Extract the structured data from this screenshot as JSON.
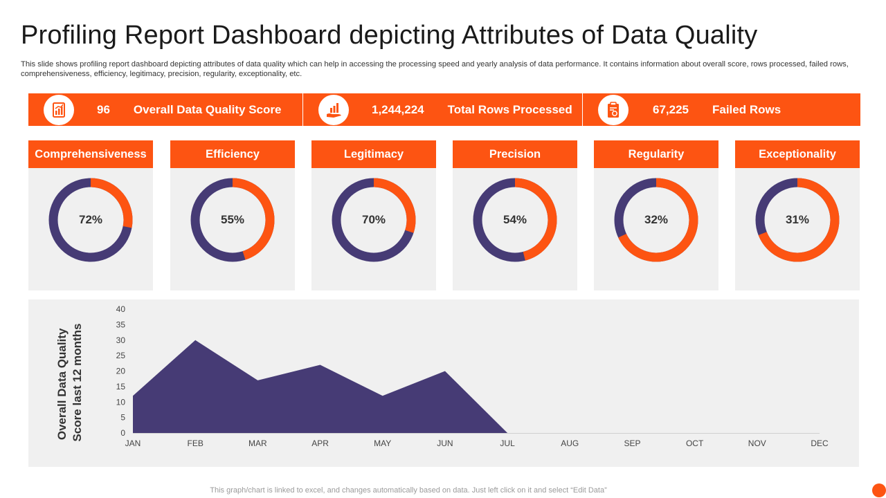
{
  "title": "Profiling Report Dashboard depicting Attributes of Data Quality",
  "subtitle": "This slide shows profiling report dashboard depicting attributes of data quality which can help in accessing the processing speed and yearly analysis of data performance. It contains information about overall score, rows processed, failed rows, comprehensiveness, efficiency, legitimacy, precision, regularity, exceptionality, etc.",
  "kpis": [
    {
      "value": "96",
      "label": "Overall Data Quality Score",
      "icon": "report-chart-icon"
    },
    {
      "value": "1,244,224",
      "label": "Total Rows Processed",
      "icon": "hand-chart-icon"
    },
    {
      "value": "67,225",
      "label": "Failed Rows",
      "icon": "clipboard-report-icon"
    }
  ],
  "attributes": [
    {
      "name": "Comprehensiveness",
      "percent": 72,
      "label": "72%"
    },
    {
      "name": "Efficiency",
      "percent": 55,
      "label": "55%"
    },
    {
      "name": "Legitimacy",
      "percent": 70,
      "label": "70%"
    },
    {
      "name": "Precision",
      "percent": 54,
      "label": "54%"
    },
    {
      "name": "Regularity",
      "percent": 32,
      "label": "32%"
    },
    {
      "name": "Exceptionality",
      "percent": 31,
      "label": "31%"
    }
  ],
  "colors": {
    "accent": "#fd5412",
    "purple": "#463b75",
    "panel": "#f0f0f0"
  },
  "chart_data": {
    "type": "area",
    "title": "",
    "ylabel": "Overall Data Quality Score last 12 months",
    "xlabel": "",
    "categories": [
      "JAN",
      "FEB",
      "MAR",
      "APR",
      "MAY",
      "JUN",
      "JUL",
      "AUG",
      "SEP",
      "OCT",
      "NOV",
      "DEC"
    ],
    "values": [
      12,
      30,
      17,
      22,
      12,
      20,
      0,
      null,
      null,
      null,
      null,
      null
    ],
    "ylim": [
      0,
      40
    ],
    "yticks": [
      0,
      5,
      10,
      15,
      20,
      25,
      30,
      35,
      40
    ],
    "grid": false,
    "legend": "none"
  },
  "footnote": "This graph/chart is linked to excel, and changes automatically based on data. Just left click on it and select “Edit Data”"
}
